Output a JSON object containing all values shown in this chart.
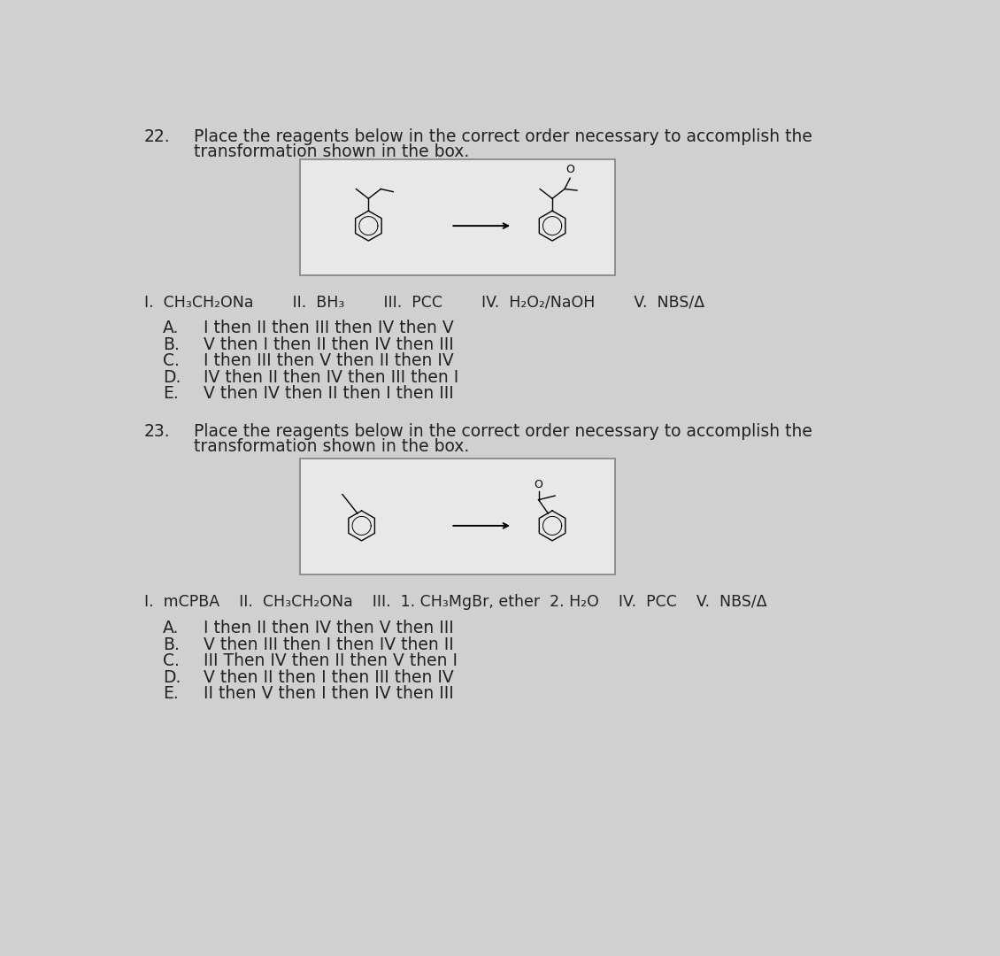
{
  "bg_color": "#d0d0d0",
  "box_facecolor": "#e8e8e8",
  "box_edgecolor": "#888888",
  "text_color": "#222222",
  "q22": {
    "number": "22.",
    "title_line1": "Place the reagents below in the correct order necessary to accomplish the",
    "title_line2": "transformation shown in the box.",
    "reagents_parts": [
      {
        "text": "I.  CH",
        "x": 30
      },
      {
        "text": "3",
        "x": 0,
        "sub": true
      },
      {
        "text": "CH",
        "x": 0
      },
      {
        "text": "2",
        "x": 0,
        "sub": true
      },
      {
        "text": "ONa",
        "x": 0
      }
    ],
    "reagent_line": "I.  CH₃CH₂ONa        II.  BH₃        III.  PCC        IV.  H₂O₂/NaOH        V.  NBS/Δ",
    "choices": [
      {
        "letter": "A.",
        "text": "I then II then III then IV then V"
      },
      {
        "letter": "B.",
        "text": "V then I then II then IV then III"
      },
      {
        "letter": "C.",
        "text": "I then III then V then II then IV"
      },
      {
        "letter": "D.",
        "text": "IV then II then IV then III then I"
      },
      {
        "letter": "E.",
        "text": "V then IV then II then I then III"
      }
    ]
  },
  "q23": {
    "number": "23.",
    "title_line1": "Place the reagents below in the correct order necessary to accomplish the",
    "title_line2": "transformation shown in the box.",
    "reagent_line": "I.  mCPBA    II.  CH₃CH₂ONa    III.  1. CH₃MgBr, ether  2. H₂O    IV.  PCC    V.  NBS/Δ",
    "choices": [
      {
        "letter": "A.",
        "text": "I then II then IV then V then III"
      },
      {
        "letter": "B.",
        "text": "V then III then I then IV then II"
      },
      {
        "letter": "C.",
        "text": "III Then IV then II then V then I"
      },
      {
        "letter": "D.",
        "text": "V then II then I then III then IV"
      },
      {
        "letter": "E.",
        "text": "II then V then I then IV then III"
      }
    ]
  }
}
